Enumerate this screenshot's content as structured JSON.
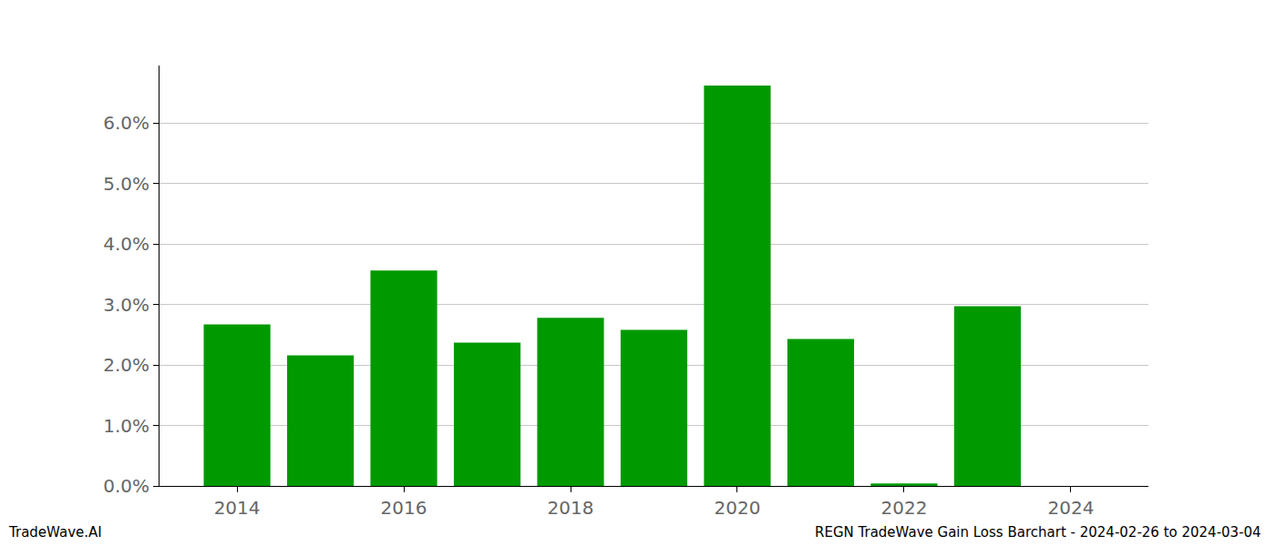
{
  "chart_data": {
    "type": "bar",
    "x": [
      2014,
      2015,
      2016,
      2017,
      2018,
      2019,
      2020,
      2021,
      2022,
      2023
    ],
    "values": [
      2.67,
      2.16,
      3.56,
      2.37,
      2.78,
      2.58,
      6.62,
      2.43,
      0.04,
      2.97
    ],
    "color": "#009900",
    "xlim": [
      2013.07,
      2024.93
    ],
    "xticks": [
      2014,
      2016,
      2018,
      2020,
      2022,
      2024
    ],
    "ylim": [
      0,
      6.95
    ],
    "yticks": [
      {
        "value": 0,
        "label": "0.0%"
      },
      {
        "value": 1,
        "label": "1.0%"
      },
      {
        "value": 2,
        "label": "2.0%"
      },
      {
        "value": 3,
        "label": "3.0%"
      },
      {
        "value": 4,
        "label": "4.0%"
      },
      {
        "value": 5,
        "label": "5.0%"
      },
      {
        "value": 6,
        "label": "6.0%"
      }
    ],
    "grid": true,
    "annotations": [
      "TradeWave.AI",
      "REGN TradeWave Gain Loss Barchart - 2024-02-26 to 2024-03-04"
    ]
  }
}
